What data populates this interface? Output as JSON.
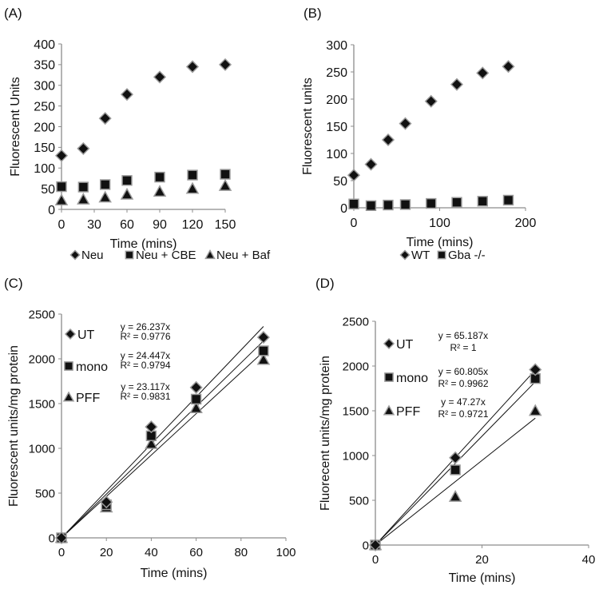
{
  "chart_data": [
    {
      "panel_label": "(A)",
      "type": "scatter",
      "xlabel": "Time (mins)",
      "ylabel": "Fluorescent Units",
      "xlim": [
        0,
        150
      ],
      "ylim": [
        0,
        400
      ],
      "xticks": [
        0,
        30,
        60,
        90,
        120,
        150
      ],
      "yticks": [
        0,
        50,
        100,
        150,
        200,
        250,
        300,
        350,
        400
      ],
      "legend_placement": "bottom",
      "x": [
        0,
        20,
        40,
        60,
        90,
        120,
        150
      ],
      "series": [
        {
          "name": "Neu",
          "marker": "diamond",
          "values": [
            130,
            147,
            220,
            278,
            320,
            345,
            350
          ]
        },
        {
          "name": "Neu + CBE",
          "marker": "square",
          "values": [
            55,
            54,
            60,
            70,
            78,
            83,
            85
          ]
        },
        {
          "name": "Neu + Baf",
          "marker": "triangle",
          "values": [
            22,
            24,
            29,
            36,
            43,
            50,
            57
          ]
        }
      ]
    },
    {
      "panel_label": "(B)",
      "type": "scatter",
      "xlabel": "Time (mins)",
      "ylabel": "Fluorescent units",
      "xlim": [
        0,
        200
      ],
      "ylim": [
        0,
        300
      ],
      "xticks": [
        0,
        100,
        200
      ],
      "yticks": [
        0,
        50,
        100,
        150,
        200,
        250,
        300
      ],
      "legend_placement": "bottom",
      "x": [
        0,
        20,
        40,
        60,
        90,
        120,
        150,
        180
      ],
      "series": [
        {
          "name": "WT",
          "marker": "diamond",
          "values": [
            60,
            80,
            125,
            155,
            196,
            227,
            248,
            260
          ]
        },
        {
          "name": "Gba -/-",
          "marker": "square",
          "values": [
            7,
            4,
            5,
            6,
            8,
            10,
            12,
            14
          ]
        }
      ]
    },
    {
      "panel_label": "(C)",
      "type": "scatter",
      "xlabel": "Time (mins)",
      "ylabel": "Fluorescent units/mg protein",
      "xlim": [
        0,
        100
      ],
      "ylim": [
        0,
        2500
      ],
      "xticks": [
        0,
        20,
        40,
        60,
        80,
        100
      ],
      "yticks": [
        0,
        500,
        1000,
        1500,
        2000,
        2500
      ],
      "legend_placement": "top-left",
      "trend_to_x": 90,
      "x": [
        0,
        20,
        40,
        60,
        90
      ],
      "series": [
        {
          "name": "UT",
          "marker": "diamond",
          "values": [
            0,
            400,
            1240,
            1680,
            2240
          ],
          "slope": 26.237,
          "equation": "y = 26.237x",
          "r2": "R² = 0.9776"
        },
        {
          "name": "mono",
          "marker": "square",
          "values": [
            0,
            370,
            1140,
            1550,
            2090
          ],
          "slope": 24.447,
          "equation": "y = 24.447x",
          "r2": "R² = 0.9794"
        },
        {
          "name": "PFF",
          "marker": "triangle",
          "values": [
            0,
            340,
            1050,
            1450,
            1990
          ],
          "slope": 23.117,
          "equation": "y = 23.117x",
          "r2": "R² = 0.9831"
        }
      ]
    },
    {
      "panel_label": "(D)",
      "type": "scatter",
      "xlabel": "Time (mins)",
      "ylabel": "Fluorecent units/mg protein",
      "xlim": [
        0,
        40
      ],
      "ylim": [
        0,
        2500
      ],
      "xticks": [
        0,
        20,
        40
      ],
      "yticks": [
        0,
        500,
        1000,
        1500,
        2000,
        2500
      ],
      "legend_placement": "top-left",
      "trend_to_x": 30,
      "x": [
        0,
        15,
        30
      ],
      "series": [
        {
          "name": "UT",
          "marker": "diamond",
          "values": [
            0,
            975,
            1960
          ],
          "slope": 65.187,
          "equation": "y = 65.187x",
          "r2": "R² = 1"
        },
        {
          "name": "mono",
          "marker": "square",
          "values": [
            0,
            840,
            1860
          ],
          "slope": 60.805,
          "equation": "y = 60.805x",
          "r2": "R² = 0.9962"
        },
        {
          "name": "PFF",
          "marker": "triangle",
          "values": [
            0,
            540,
            1500
          ],
          "slope": 47.27,
          "equation": "y = 47.27x",
          "r2": "R² = 0.9721"
        }
      ]
    }
  ],
  "colors": {
    "marker_fill": "#111111",
    "marker_outline": "#9a9a9a",
    "axis": "#8c8c8c",
    "trendline": "#111111"
  }
}
